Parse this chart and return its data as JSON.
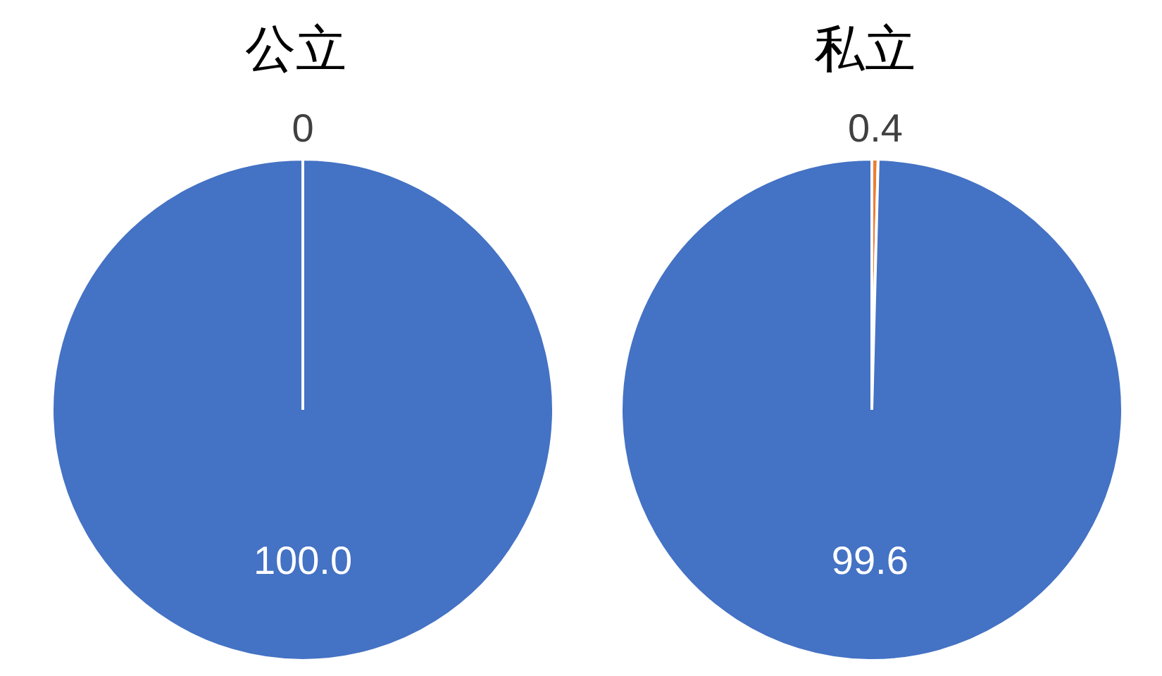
{
  "chart_data": [
    {
      "type": "pie",
      "title": "公立",
      "categories": [
        null,
        null
      ],
      "values": [
        0,
        100.0
      ],
      "colors": [
        "#ed7d31",
        "#4472c4"
      ],
      "value_labels": [
        "0",
        "100.0"
      ]
    },
    {
      "type": "pie",
      "title": "私立",
      "categories": [
        null,
        null
      ],
      "values": [
        0.4,
        99.6
      ],
      "colors": [
        "#ed7d31",
        "#4472c4"
      ],
      "value_labels": [
        "0.4",
        "99.6"
      ]
    }
  ]
}
